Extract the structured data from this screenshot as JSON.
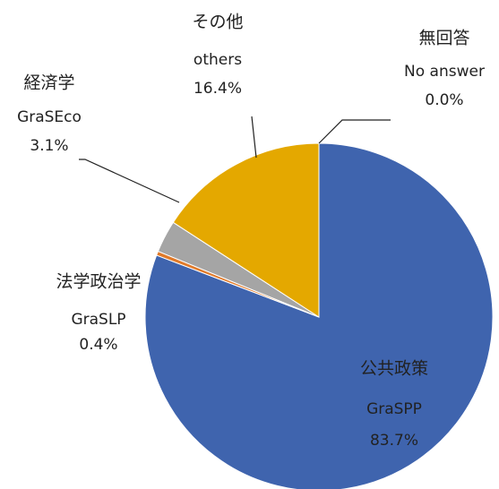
{
  "chart_data": {
    "type": "pie",
    "categories": [
      "公共政策",
      "法学政治学",
      "経済学",
      "その他",
      "無回答"
    ],
    "categories_en": [
      "GraSPP",
      "GraSLP",
      "GraSEco",
      "others",
      "No answer"
    ],
    "values": [
      83.7,
      0.4,
      3.1,
      16.4,
      0.0
    ],
    "value_labels": [
      "83.7%",
      "0.4%",
      "3.1%",
      "16.4%",
      "0.0%"
    ],
    "colors": [
      "#3f64ae",
      "#e07a2a",
      "#a5a5a5",
      "#e4a800",
      "#5b9bd5"
    ]
  }
}
